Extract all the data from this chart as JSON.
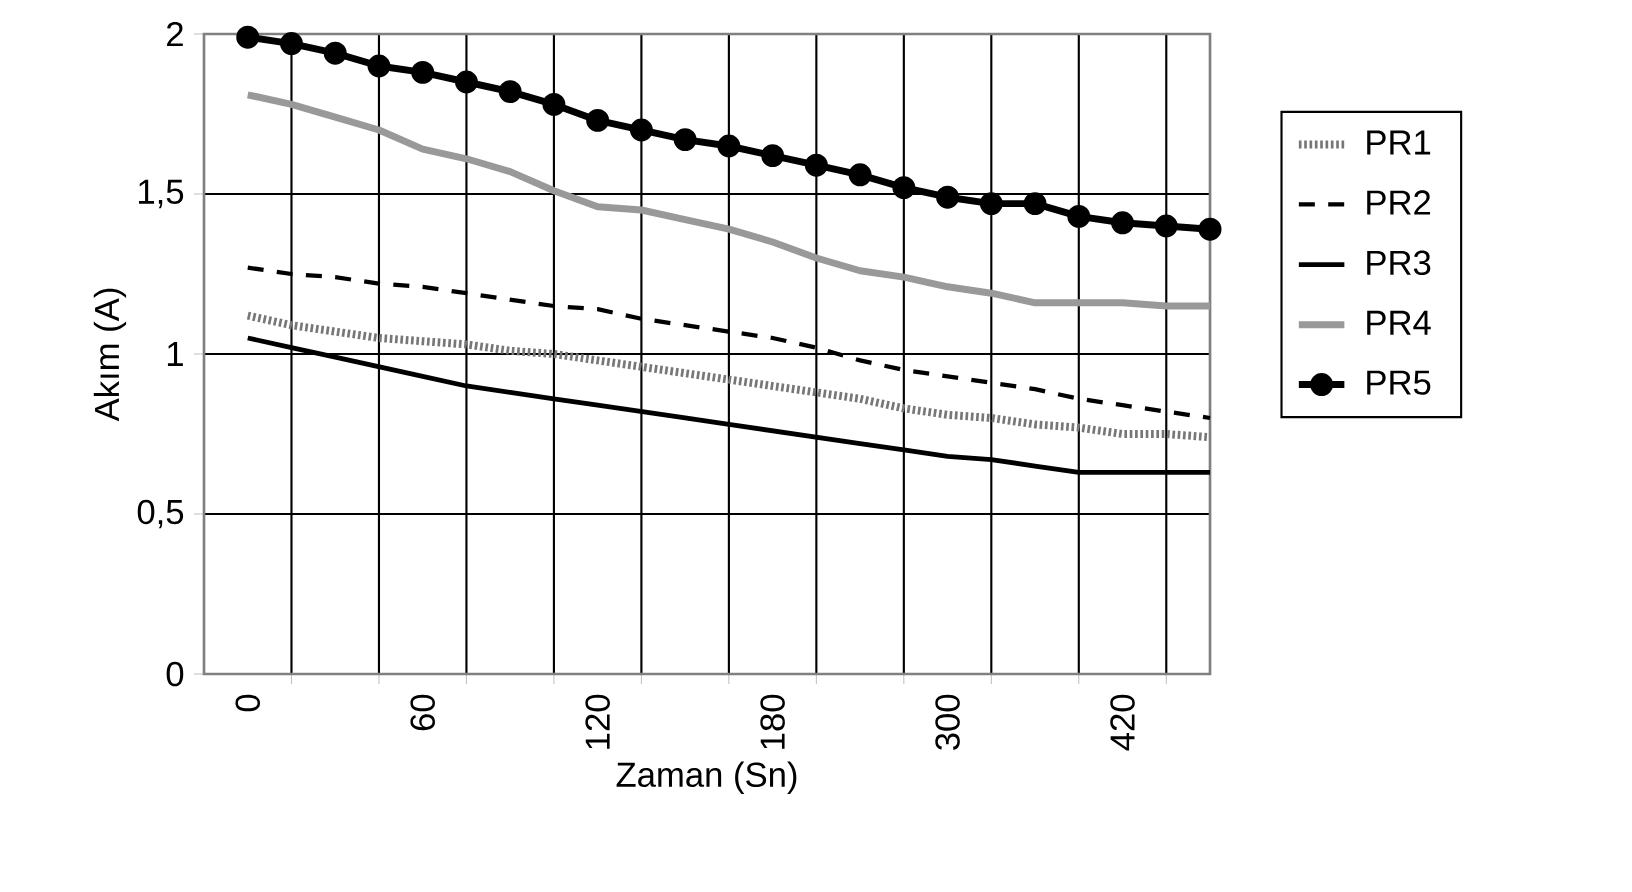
{
  "chart_data": {
    "type": "line",
    "xlabel": "Zaman (Sn)",
    "ylabel": "Akım (A)",
    "categories": [
      "0",
      null,
      null,
      null,
      "60",
      null,
      null,
      null,
      "120",
      null,
      null,
      null,
      "180",
      null,
      null,
      null,
      "300",
      null,
      null,
      null,
      "420",
      null,
      null
    ],
    "ylim": [
      0,
      2
    ],
    "yticks": [
      0,
      {
        "value": 0.5,
        "label": "0,5"
      },
      1,
      {
        "value": 1.5,
        "label": "1,5"
      },
      2
    ],
    "grid": true,
    "legend": "right",
    "series": [
      {
        "name": "PR1",
        "color": "#777777",
        "line_style": "dotted",
        "marker": "none",
        "values": [
          1.12,
          1.09,
          1.07,
          1.05,
          1.04,
          1.03,
          1.01,
          1.0,
          0.98,
          0.96,
          0.94,
          0.92,
          0.9,
          0.88,
          0.86,
          0.83,
          0.81,
          0.8,
          0.78,
          0.77,
          0.75,
          0.75,
          0.74
        ]
      },
      {
        "name": "PR2",
        "color": "#000000",
        "line_style": "dashed",
        "marker": "none",
        "values": [
          1.27,
          1.25,
          1.24,
          1.22,
          1.21,
          1.19,
          1.17,
          1.15,
          1.14,
          1.11,
          1.09,
          1.07,
          1.05,
          1.02,
          0.98,
          0.95,
          0.93,
          0.91,
          0.89,
          0.86,
          0.84,
          0.82,
          0.8
        ]
      },
      {
        "name": "PR3",
        "color": "#000000",
        "line_style": "solid",
        "marker": "none",
        "values": [
          1.05,
          1.02,
          0.99,
          0.96,
          0.93,
          0.9,
          0.88,
          0.86,
          0.84,
          0.82,
          0.8,
          0.78,
          0.76,
          0.74,
          0.72,
          0.7,
          0.68,
          0.67,
          0.65,
          0.63,
          0.63,
          0.63,
          0.63
        ]
      },
      {
        "name": "PR4",
        "color": "#999999",
        "line_style": "solid",
        "marker": "none",
        "values": [
          1.81,
          1.78,
          1.74,
          1.7,
          1.64,
          1.61,
          1.57,
          1.51,
          1.46,
          1.45,
          1.42,
          1.39,
          1.35,
          1.3,
          1.26,
          1.24,
          1.21,
          1.19,
          1.16,
          1.16,
          1.16,
          1.15,
          1.15
        ]
      },
      {
        "name": "PR5",
        "color": "#000000",
        "line_style": "solid",
        "marker": "circle",
        "values": [
          1.99,
          1.97,
          1.94,
          1.9,
          1.88,
          1.85,
          1.82,
          1.78,
          1.73,
          1.7,
          1.67,
          1.65,
          1.62,
          1.59,
          1.56,
          1.52,
          1.49,
          1.47,
          1.47,
          1.43,
          1.41,
          1.4,
          1.39
        ]
      }
    ]
  }
}
